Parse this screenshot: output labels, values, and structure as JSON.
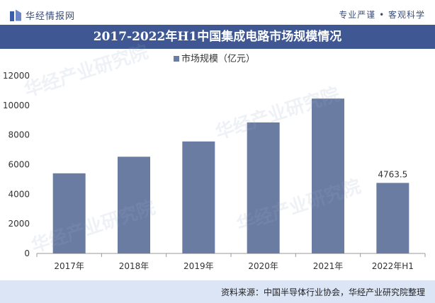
{
  "header": {
    "brand": "华经情报网",
    "slogan": "专业严谨 • 客观科学",
    "title": "2017-2022年H1中国集成电路市场规模情况"
  },
  "footer": {
    "source": "资料来源：中国半导体行业协会，华经产业研究院整理"
  },
  "watermark": {
    "text": "华经产业研究院",
    "url": "www.huaon.com"
  },
  "colors": {
    "bar": "#6b7ca3",
    "title_bar": "#3f5792",
    "source_bar": "#dbe5f5"
  },
  "chart_data": {
    "type": "bar",
    "categories": [
      "2017年",
      "2018年",
      "2019年",
      "2020年",
      "2021年",
      "2022年H1"
    ],
    "series": [
      {
        "name": "市场规模（亿元）",
        "values": [
          5411.3,
          6532,
          7562.3,
          8848,
          10458.3,
          4763.5
        ]
      }
    ],
    "data_labels": [
      "",
      "",
      "",
      "",
      "",
      "4763.5"
    ],
    "ylim": [
      0,
      12000
    ],
    "yticks": [
      0,
      2000,
      4000,
      6000,
      8000,
      10000,
      12000
    ],
    "legend_position": "top-center",
    "grid": false
  }
}
